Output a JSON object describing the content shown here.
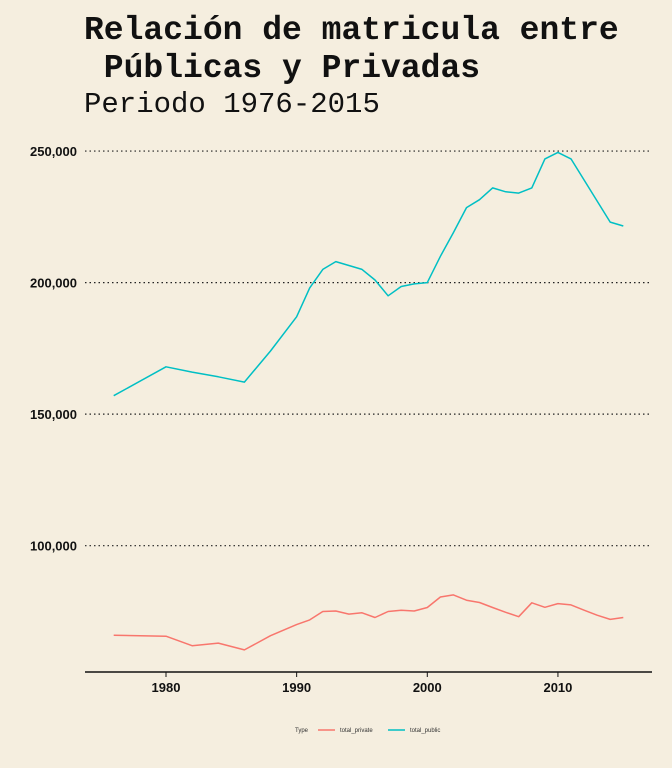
{
  "chart_data": {
    "type": "line",
    "title": "Relación de matricula entre\n Públicas y Privadas",
    "subtitle": "Periodo 1976-2015",
    "xlabel": "",
    "ylabel": "",
    "xlim": [
      1973.8,
      2017.2
    ],
    "ylim": [
      52000,
      258000
    ],
    "x_ticks": [
      1980,
      1990,
      2000,
      2010
    ],
    "x_tick_labels": [
      "1980",
      "1990",
      "2000",
      "2010"
    ],
    "y_ticks": [
      100000,
      150000,
      200000,
      250000
    ],
    "y_tick_labels": [
      "100,000",
      "150,000",
      "200,000",
      "250,000"
    ],
    "grid": "horizontal-dotted",
    "legend": {
      "title": "Type",
      "placement": "bottom"
    },
    "series": [
      {
        "name": "total_private",
        "color": "#f8766d",
        "x": [
          1976,
          1980,
          1982,
          1984,
          1986,
          1988,
          1990,
          1991,
          1992,
          1993,
          1994,
          1995,
          1996,
          1997,
          1998,
          1999,
          2000,
          2001,
          2002,
          2003,
          2004,
          2005,
          2006,
          2007,
          2008,
          2009,
          2010,
          2011,
          2012,
          2013,
          2014,
          2015
        ],
        "y": [
          66000,
          65600,
          62000,
          63000,
          60400,
          65800,
          70000,
          71800,
          75000,
          75200,
          74000,
          74500,
          72700,
          75000,
          75500,
          75200,
          76500,
          80500,
          81300,
          79300,
          78400,
          76500,
          74700,
          73000,
          78300,
          76600,
          78000,
          77500,
          75500,
          73600,
          72000,
          72700
        ]
      },
      {
        "name": "total_public",
        "color": "#00bfc4",
        "x": [
          1976,
          1980,
          1982,
          1984,
          1986,
          1988,
          1990,
          1991,
          1992,
          1993,
          1994,
          1995,
          1996,
          1997,
          1998,
          1999,
          2000,
          2001,
          2002,
          2003,
          2004,
          2005,
          2006,
          2007,
          2008,
          2009,
          2010,
          2011,
          2012,
          2013,
          2014,
          2015
        ],
        "y": [
          157000,
          168000,
          166000,
          164200,
          162200,
          174000,
          187000,
          198000,
          205000,
          208000,
          206500,
          205000,
          201000,
          195000,
          198500,
          199500,
          200000,
          210000,
          219000,
          228500,
          231500,
          236000,
          234500,
          234000,
          236000,
          247000,
          249500,
          247000,
          239000,
          231000,
          223000,
          221500
        ]
      }
    ]
  }
}
